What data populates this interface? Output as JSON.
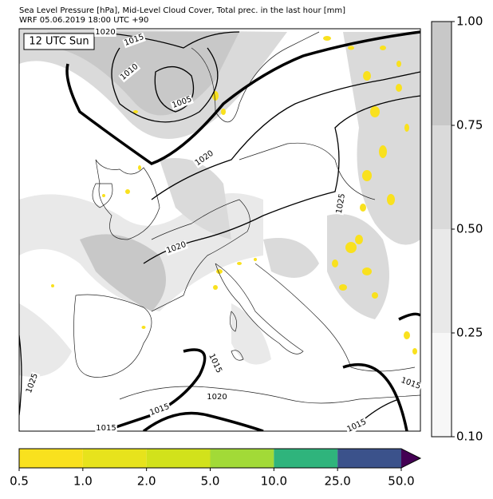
{
  "header": {
    "title": "Sea Level Pressure [hPa], Mid-Level Cloud Cover, Total prec. in the last hour [mm]",
    "subtitle": "WRF 05.06.2019 18:00 UTC +90"
  },
  "map": {
    "time_label": "12 UTC Sun",
    "isobar_labels": [
      "1020",
      "1015",
      "1010",
      "1005",
      "1020",
      "1025",
      "1020",
      "1015",
      "1020",
      "1015",
      "1015",
      "1015",
      "1015",
      "1025"
    ]
  },
  "cloud_colorbar": {
    "ticks": [
      {
        "value": 0.1,
        "label": "0.10"
      },
      {
        "value": 0.25,
        "label": "0.25"
      },
      {
        "value": 0.5,
        "label": "0.50"
      },
      {
        "value": 0.75,
        "label": "0.75"
      },
      {
        "value": 1.0,
        "label": "1.00"
      }
    ],
    "colors": [
      "#f7f7f7",
      "#e9e9e9",
      "#dadada",
      "#c8c8c8"
    ]
  },
  "precip_colorbar": {
    "ticks": [
      {
        "value": 0.5,
        "label": "0.5"
      },
      {
        "value": 1.0,
        "label": "1.0"
      },
      {
        "value": 2.0,
        "label": "2.0"
      },
      {
        "value": 5.0,
        "label": "5.0"
      },
      {
        "value": 10.0,
        "label": "10.0"
      },
      {
        "value": 25.0,
        "label": "25.0"
      },
      {
        "value": 50.0,
        "label": "50.0"
      }
    ],
    "colors": [
      "#f9e11e",
      "#e7e31c",
      "#d2e21b",
      "#a2da37",
      "#2fb47c",
      "#3b528b"
    ],
    "extend_color": "#440154"
  }
}
